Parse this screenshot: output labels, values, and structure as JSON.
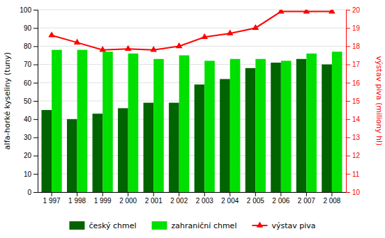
{
  "chart_data": {
    "type": "bar",
    "categories": [
      "1 997",
      "1 998",
      "1 999",
      "2 000",
      "2 001",
      "2 002",
      "2 003",
      "2 004",
      "2 005",
      "2 006",
      "2 007",
      "2 008"
    ],
    "series": [
      {
        "name": "český chmel",
        "color": "#006400",
        "values": [
          45,
          40,
          43,
          46,
          49,
          49,
          59,
          62,
          68,
          71,
          73,
          70
        ]
      },
      {
        "name": "zahraniční chmel",
        "color": "#00e000",
        "values": [
          78,
          78,
          77,
          76,
          73,
          75,
          72,
          73,
          73,
          72,
          76,
          77
        ]
      },
      {
        "name": "výstav piva",
        "color": "#ff0000",
        "type": "line",
        "axis": "y2",
        "marker": "triangle",
        "values": [
          18.6,
          18.2,
          17.8,
          17.85,
          17.8,
          18.0,
          18.5,
          18.7,
          19.0,
          19.9,
          19.9,
          19.9
        ]
      }
    ],
    "ylabel": "alfa-horké kyseliny (tuny)",
    "y2label": "výstav piva (miliony hl)",
    "ylim": [
      0,
      100
    ],
    "yticks": [
      0,
      10,
      20,
      30,
      40,
      50,
      60,
      70,
      80,
      90,
      100
    ],
    "y2lim": [
      10,
      20
    ],
    "y2ticks": [
      10,
      11,
      12,
      13,
      14,
      15,
      16,
      17,
      18,
      19,
      20
    ],
    "grid": true,
    "legend": "bottom"
  }
}
